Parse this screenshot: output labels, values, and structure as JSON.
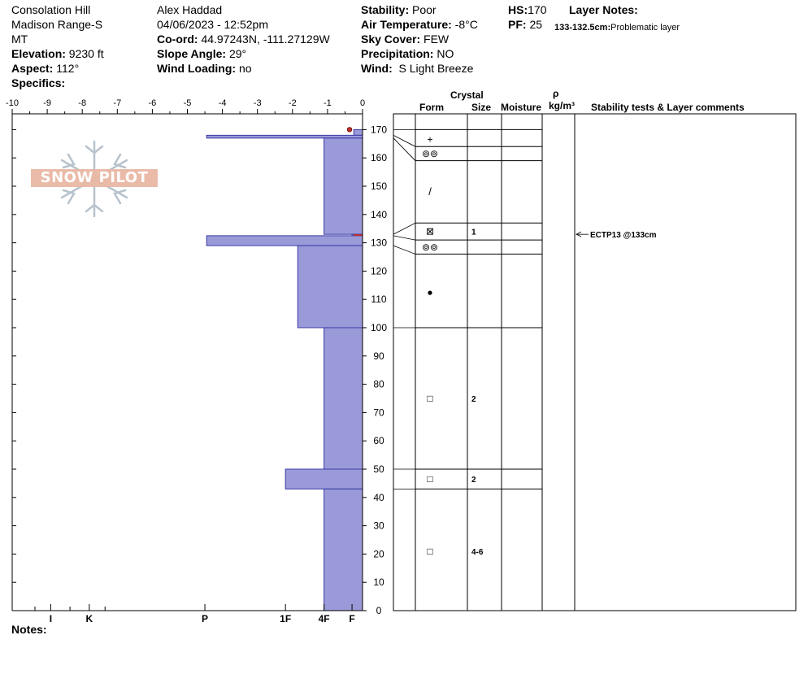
{
  "header": {
    "location": "Consolation Hill",
    "range": "Madison Range-S",
    "state": "MT",
    "elevation_label": "Elevation:",
    "elevation": "9230 ft",
    "aspect_label": "Aspect:",
    "aspect": "112°",
    "specifics_label": "Specifics:",
    "observer": "Alex Haddad",
    "datetime": "04/06/2023 - 12:52pm",
    "coord_label": "Co-ord:",
    "coord": "44.97243N, -111.27129W",
    "slope_label": "Slope Angle:",
    "slope": "29°",
    "wind_loading_label": "Wind Loading:",
    "wind_loading": "no",
    "stability_label": "Stability:",
    "stability": "Poor",
    "air_temp_label": "Air Temperature:",
    "air_temp": "-8°C",
    "sky_label": "Sky Cover:",
    "sky": "FEW",
    "precip_label": "Precipitation:",
    "precip": "NO",
    "wind_label": "Wind:",
    "wind": "S Light Breeze",
    "hs_label": "HS:",
    "hs": "170",
    "pf_label": "PF:",
    "pf": "25",
    "layer_notes_label": "Layer Notes:",
    "layer_note_depth": "133-132.5cm:",
    "layer_note_text": "Problematic layer"
  },
  "logo_text": "SNOW PILOT",
  "notes_label": "Notes:",
  "table_headers": {
    "crystal": "Crystal",
    "form": "Form",
    "size": "Size",
    "moisture": "Moisture",
    "rho": "ρ",
    "density_unit": "kg/m³",
    "comments": "Stability tests & Layer comments"
  },
  "chart_data": {
    "type": "hardness-profile",
    "x_ticks": [
      "-10",
      "-9",
      "-8",
      "-7",
      "-6",
      "-5",
      "-4",
      "-3",
      "-2",
      "-1",
      "0"
    ],
    "xlim": [
      -10,
      0
    ],
    "ylim": [
      0,
      175
    ],
    "y_ticks": [
      0,
      10,
      20,
      30,
      40,
      50,
      60,
      70,
      80,
      90,
      100,
      110,
      120,
      130,
      140,
      150,
      160,
      170
    ],
    "hardness_labels": [
      {
        "label": "I",
        "x": -8.9
      },
      {
        "label": "K",
        "x": -7.8
      },
      {
        "label": "P",
        "x": -4.5
      },
      {
        "label": "1F",
        "x": -2.2
      },
      {
        "label": "4F",
        "x": -1.1
      },
      {
        "label": "F",
        "x": -0.3
      }
    ],
    "layers": [
      {
        "top": 170,
        "bottom": 168,
        "hardness": -0.25
      },
      {
        "top": 168,
        "bottom": 167,
        "hardness": -4.45
      },
      {
        "top": 167,
        "bottom": 133,
        "hardness": -1.1
      },
      {
        "top": 133,
        "bottom": 132.5,
        "hardness": -0.3
      },
      {
        "top": 132.5,
        "bottom": 129,
        "hardness": -4.45
      },
      {
        "top": 129,
        "bottom": 100,
        "hardness": -1.85
      },
      {
        "top": 100,
        "bottom": 50,
        "hardness": -1.1
      },
      {
        "top": 50,
        "bottom": 43,
        "hardness": -2.2
      },
      {
        "top": 43,
        "bottom": 0,
        "hardness": -1.1
      }
    ],
    "surface_marker_depth": 170,
    "problem_layer": {
      "top": 133,
      "bottom": 132.5
    },
    "layer_boundaries": [
      {
        "depth": 170,
        "right": 170
      },
      {
        "depth": 168,
        "right": 164
      },
      {
        "depth": 167,
        "right": 159
      },
      {
        "depth": 133,
        "right": 137
      },
      {
        "depth": 132.5,
        "right": 131
      },
      {
        "depth": 129,
        "right": 126
      },
      {
        "depth": 100,
        "right": 100
      },
      {
        "depth": 50,
        "right": 50
      },
      {
        "depth": 43,
        "right": 43
      }
    ],
    "rows": [
      {
        "depth": 166.5,
        "form": "+",
        "size": ""
      },
      {
        "depth": 161.5,
        "form": "⊚⊚",
        "size": ""
      },
      {
        "depth": 148,
        "form": "/",
        "size": ""
      },
      {
        "depth": 134,
        "form": "⊠",
        "size": "1"
      },
      {
        "depth": 128.5,
        "form": "⊚⊚",
        "size": ""
      },
      {
        "depth": 112.5,
        "form": "●",
        "size": ""
      },
      {
        "depth": 75,
        "form": "□",
        "size": "2"
      },
      {
        "depth": 46.5,
        "form": "□",
        "size": "2"
      },
      {
        "depth": 21,
        "form": "□",
        "size": "4-6"
      }
    ],
    "stability_tests": [
      {
        "depth": 133,
        "text": "ECTP13 @133cm"
      }
    ]
  },
  "colors": {
    "layer_fill": "#9a9ad8",
    "layer_stroke": "#3a3aa8",
    "problem_layer": "#c0302a",
    "logo_fill": "#e9b8a4",
    "snowflake": "#b8c2cc"
  }
}
